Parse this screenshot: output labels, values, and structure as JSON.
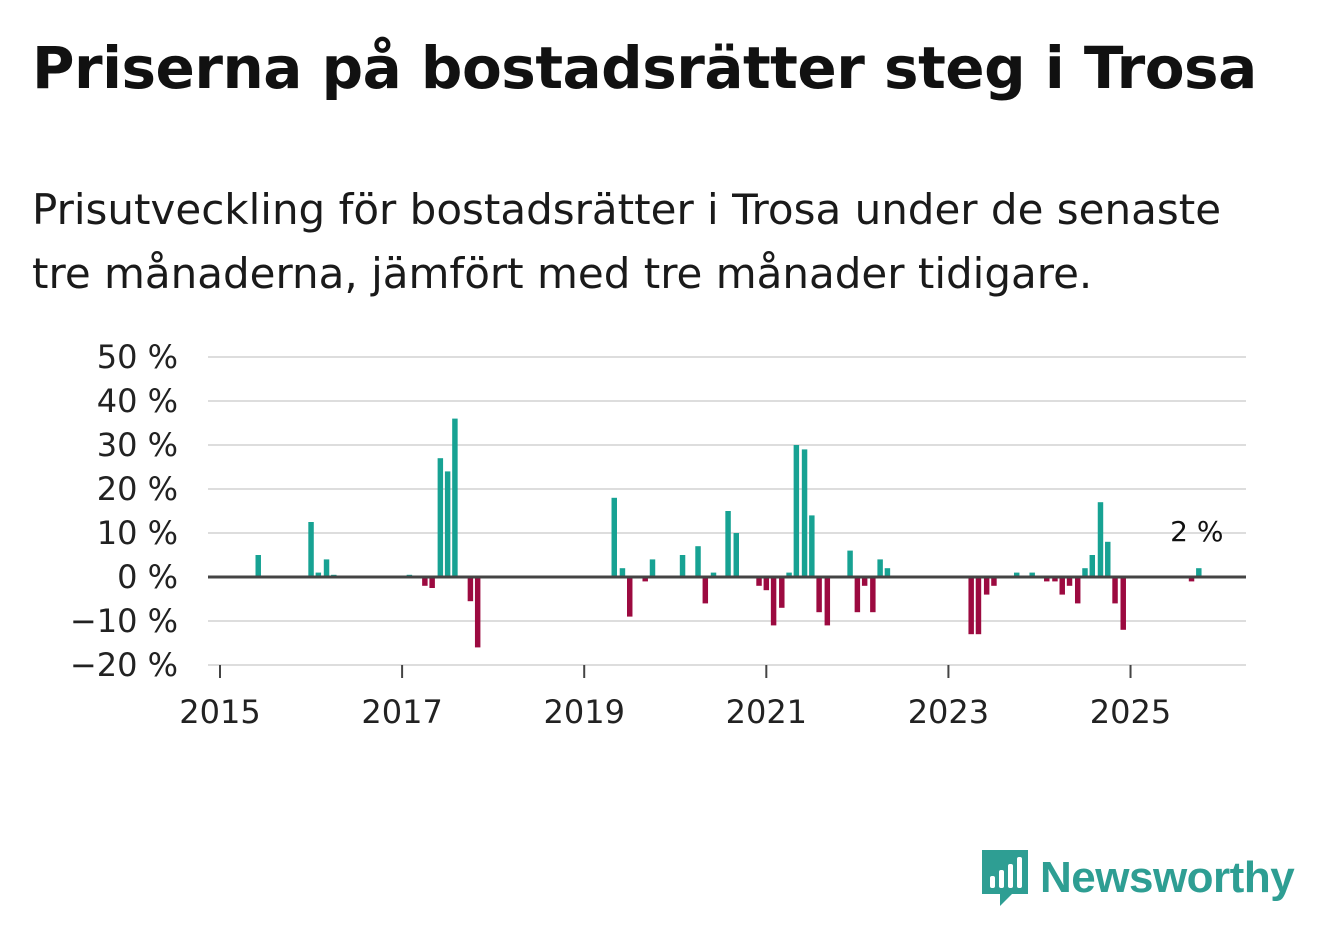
{
  "title": "Priserna på bostadsrätter steg i Trosa",
  "subtitle": "Prisutveckling för bostadsrätter i Trosa under de senaste tre månaderna, jämfört med tre månader tidigare.",
  "brand": {
    "name": "Newsworthy",
    "icon": "newsworthy-logo-icon"
  },
  "colors": {
    "positive": "#17a293",
    "negative": "#9c0a40",
    "grid": "#dddddd",
    "axis": "#444444",
    "brand": "#2e9e93"
  },
  "chart_data": {
    "type": "bar",
    "title": "Priserna på bostadsrätter steg i Trosa",
    "xlabel": "",
    "ylabel": "",
    "x_range": [
      2015.0,
      2026.4
    ],
    "ylim": [
      -20,
      50
    ],
    "y_ticks": [
      50,
      40,
      30,
      20,
      10,
      0,
      -10,
      -20
    ],
    "y_tick_labels": [
      "50 %",
      "40 %",
      "30 %",
      "20 %",
      "10 %",
      "0 %",
      "−10 %",
      "−20 %"
    ],
    "x_ticks": [
      2015,
      2017,
      2019,
      2021,
      2023,
      2025
    ],
    "x_tick_labels": [
      "2015",
      "2017",
      "2019",
      "2021",
      "2023",
      "2025"
    ],
    "grid": true,
    "bar_width_years": 0.06,
    "annotation": {
      "label": "2 %",
      "x": 2025.75,
      "value": 2
    },
    "series": [
      {
        "name": "Prisutveckling",
        "points": [
          {
            "x": 2015.42,
            "value": 5
          },
          {
            "x": 2016.0,
            "value": 12.5
          },
          {
            "x": 2016.08,
            "value": 1
          },
          {
            "x": 2016.17,
            "value": 4
          },
          {
            "x": 2016.25,
            "value": 0.5
          },
          {
            "x": 2017.08,
            "value": 0.5
          },
          {
            "x": 2017.25,
            "value": -2
          },
          {
            "x": 2017.33,
            "value": -2.5
          },
          {
            "x": 2017.42,
            "value": 27
          },
          {
            "x": 2017.5,
            "value": 24
          },
          {
            "x": 2017.58,
            "value": 36
          },
          {
            "x": 2017.75,
            "value": -5.5
          },
          {
            "x": 2017.83,
            "value": -16
          },
          {
            "x": 2019.33,
            "value": 18
          },
          {
            "x": 2019.42,
            "value": 2
          },
          {
            "x": 2019.5,
            "value": -9
          },
          {
            "x": 2019.67,
            "value": -1
          },
          {
            "x": 2019.75,
            "value": 4
          },
          {
            "x": 2020.08,
            "value": 5
          },
          {
            "x": 2020.25,
            "value": 7
          },
          {
            "x": 2020.33,
            "value": -6
          },
          {
            "x": 2020.42,
            "value": 1
          },
          {
            "x": 2020.58,
            "value": 15
          },
          {
            "x": 2020.67,
            "value": 10
          },
          {
            "x": 2020.92,
            "value": -2
          },
          {
            "x": 2021.0,
            "value": -3
          },
          {
            "x": 2021.08,
            "value": -11
          },
          {
            "x": 2021.17,
            "value": -7
          },
          {
            "x": 2021.25,
            "value": 1
          },
          {
            "x": 2021.33,
            "value": 30
          },
          {
            "x": 2021.42,
            "value": 29
          },
          {
            "x": 2021.5,
            "value": 14
          },
          {
            "x": 2021.58,
            "value": -8
          },
          {
            "x": 2021.67,
            "value": -11
          },
          {
            "x": 2021.92,
            "value": 6
          },
          {
            "x": 2022.0,
            "value": -8
          },
          {
            "x": 2022.08,
            "value": -2
          },
          {
            "x": 2022.17,
            "value": -8
          },
          {
            "x": 2022.25,
            "value": 4
          },
          {
            "x": 2022.33,
            "value": 2
          },
          {
            "x": 2023.25,
            "value": -13
          },
          {
            "x": 2023.33,
            "value": -13
          },
          {
            "x": 2023.42,
            "value": -4
          },
          {
            "x": 2023.5,
            "value": -2
          },
          {
            "x": 2023.75,
            "value": 1
          },
          {
            "x": 2023.92,
            "value": 1
          },
          {
            "x": 2024.08,
            "value": -1
          },
          {
            "x": 2024.17,
            "value": -1
          },
          {
            "x": 2024.25,
            "value": -4
          },
          {
            "x": 2024.33,
            "value": -2
          },
          {
            "x": 2024.42,
            "value": -6
          },
          {
            "x": 2024.5,
            "value": 2
          },
          {
            "x": 2024.58,
            "value": 5
          },
          {
            "x": 2024.67,
            "value": 17
          },
          {
            "x": 2024.75,
            "value": 8
          },
          {
            "x": 2024.83,
            "value": -6
          },
          {
            "x": 2024.92,
            "value": -12
          },
          {
            "x": 2025.67,
            "value": -1
          },
          {
            "x": 2025.75,
            "value": 2
          }
        ]
      }
    ]
  }
}
